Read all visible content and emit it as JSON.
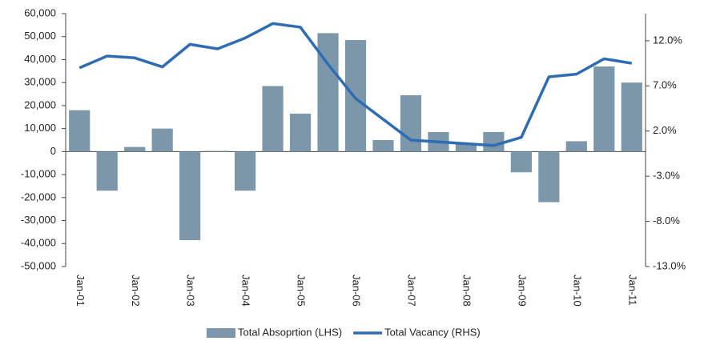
{
  "chart_data": {
    "type": "bar",
    "categories": [
      "Jan-01",
      null,
      "Jan-02",
      null,
      "Jan-03",
      null,
      "Jan-04",
      null,
      "Jan-05",
      null,
      "Jan-06",
      null,
      "Jan-07",
      null,
      "Jan-08",
      null,
      "Jan-09",
      null,
      "Jan-10",
      null,
      "Jan-11"
    ],
    "series": [
      {
        "name": "Total Absoprtion (LHS)",
        "type": "bar",
        "color": "#7b97a9",
        "values": [
          18000,
          -17000,
          2000,
          10000,
          -38500,
          300,
          -17000,
          28500,
          16500,
          51500,
          48500,
          5000,
          24500,
          8500,
          3500,
          8500,
          -9000,
          -22000,
          4500,
          37000,
          30000
        ]
      },
      {
        "name": "Total Vacancy (RHS)",
        "type": "line",
        "axis": "y2",
        "color": "#2e6db4",
        "values": [
          9.0,
          10.3,
          10.1,
          9.1,
          11.6,
          11.1,
          12.3,
          13.9,
          13.5,
          9.4,
          5.6,
          3.3,
          1.0,
          0.8,
          0.6,
          0.4,
          1.3,
          8.0,
          8.3,
          10.0,
          9.5
        ]
      }
    ],
    "ylim": [
      -50000,
      60000
    ],
    "yticks": [
      {
        "value": -50000,
        "label": "-50,000"
      },
      {
        "value": -40000,
        "label": "-40,000"
      },
      {
        "value": -30000,
        "label": "-30,000"
      },
      {
        "value": -20000,
        "label": "-20,000"
      },
      {
        "value": -10000,
        "label": "-10,000"
      },
      0,
      {
        "value": 10000,
        "label": "10,000"
      },
      {
        "value": 20000,
        "label": "20,000"
      },
      {
        "value": 30000,
        "label": "30,000"
      },
      {
        "value": 40000,
        "label": "40,000"
      },
      {
        "value": 50000,
        "label": "50,000"
      },
      {
        "value": 60000,
        "label": "60,000"
      }
    ],
    "y2lim": [
      -13,
      15
    ],
    "y2ticks": [
      {
        "value": -13,
        "label": "-13.0%"
      },
      {
        "value": -8,
        "label": "-8.0%"
      },
      {
        "value": -3,
        "label": "-3.0%"
      },
      {
        "value": 2,
        "label": "2.0%"
      },
      {
        "value": 7,
        "label": "7.0%"
      },
      {
        "value": 12,
        "label": "12.0%"
      }
    ],
    "legend": "bottom"
  }
}
